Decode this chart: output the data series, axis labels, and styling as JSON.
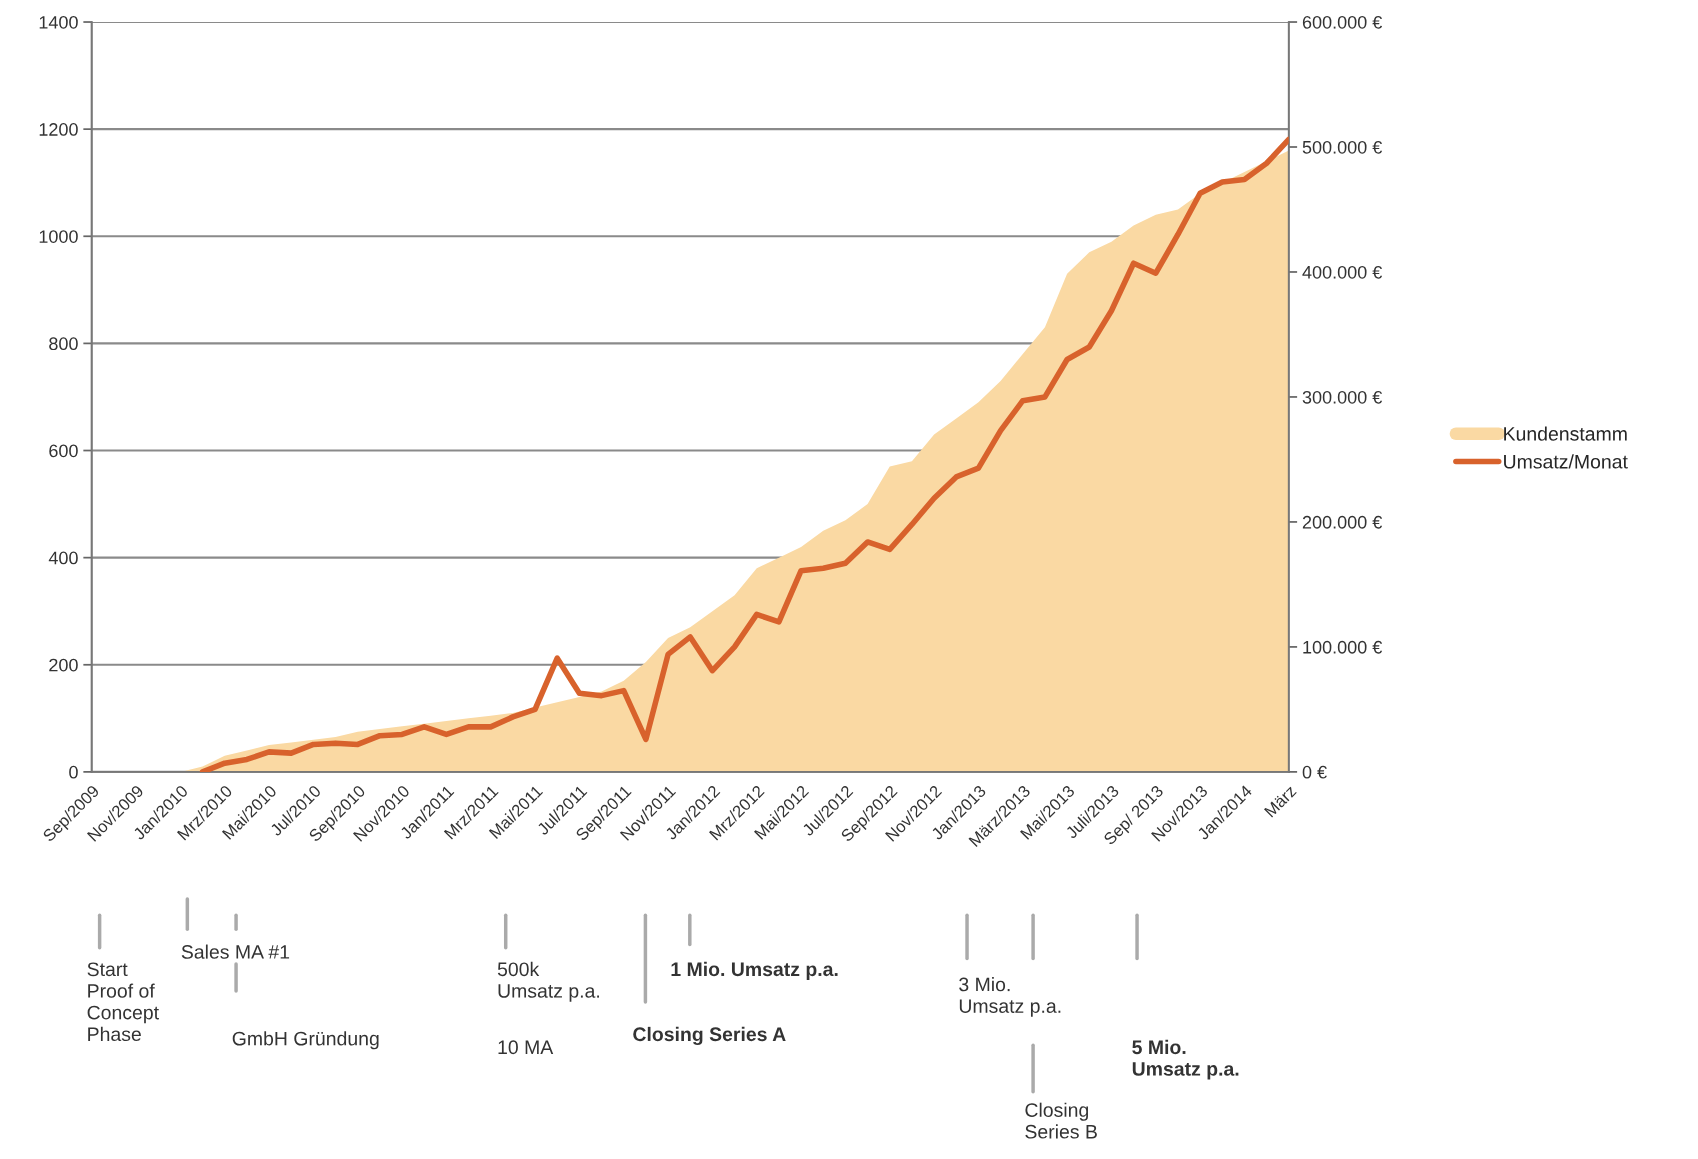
{
  "chart_data": {
    "type": "area",
    "categories": [
      "Sep/2009",
      null,
      "Nov/2009",
      null,
      "Jan/2010",
      null,
      "Mrz/2010",
      null,
      "Mai/2010",
      null,
      "Jul/2010",
      null,
      "Sep/2010",
      null,
      "Nov/2010",
      null,
      "Jan/2011",
      null,
      "Mrz/2011",
      null,
      "Mai/2011",
      null,
      "Jul/2011",
      null,
      "Sep/2011",
      null,
      "Nov/2011",
      null,
      "Jan/2012",
      null,
      "Mrz/2012",
      null,
      "Mai/2012",
      null,
      "Jul/2012",
      null,
      "Sep/2012",
      null,
      "Nov/2012",
      null,
      "Jan/2013",
      null,
      "März/2013",
      null,
      "Mai/2013",
      null,
      "Juli/2013",
      null,
      "Sep/ 2013",
      null,
      "Nov/2013",
      null,
      "Jan/2014",
      null,
      "März"
    ],
    "series": [
      {
        "name": "Kundenstamm",
        "color": "#fad9a3",
        "values": [
          0,
          0,
          0,
          0,
          0,
          10,
          30,
          40,
          50,
          55,
          60,
          65,
          75,
          80,
          85,
          90,
          95,
          100,
          105,
          110,
          120,
          130,
          140,
          150,
          170,
          205,
          250,
          270,
          300,
          330,
          380,
          400,
          420,
          450,
          470,
          500,
          570,
          580,
          630,
          660,
          690,
          730,
          780,
          830,
          930,
          970,
          990,
          1020,
          1040,
          1050,
          1080,
          1100,
          1120,
          1140,
          1160
        ]
      },
      {
        "name": "Umsatz/Monat",
        "type": "line",
        "axis": "y2",
        "color": "#d8622c",
        "values": [
          null,
          null,
          null,
          null,
          null,
          0,
          7000,
          10000,
          16000,
          15000,
          22000,
          23000,
          22000,
          29000,
          30000,
          36000,
          30000,
          36000,
          36000,
          44000,
          50000,
          91000,
          63000,
          61000,
          65000,
          26000,
          94000,
          108000,
          81000,
          100000,
          126000,
          120000,
          161000,
          163000,
          167000,
          184000,
          178000,
          198000,
          219000,
          236000,
          243000,
          273000,
          297000,
          300000,
          330000,
          340000,
          369000,
          407000,
          399000,
          430000,
          463000,
          472000,
          474000,
          487000,
          506000
        ]
      }
    ],
    "ylim": [
      0,
      1400
    ],
    "yticks": [
      0,
      200,
      400,
      600,
      800,
      1000,
      1200,
      1400
    ],
    "y2lim": [
      0,
      600000
    ],
    "y2ticks": [
      {
        "value": 0,
        "label": "0 €"
      },
      {
        "value": 100000,
        "label": "100.000 €"
      },
      {
        "value": 200000,
        "label": "200.000 €"
      },
      {
        "value": 300000,
        "label": "300.000 €"
      },
      {
        "value": 400000,
        "label": "400.000 €"
      },
      {
        "value": 500000,
        "label": "500.000 €"
      },
      {
        "value": 600000,
        "label": "600.000 €"
      }
    ],
    "grid": "y",
    "legend": "right",
    "line_style": "solid",
    "marker": "none",
    "annotations": [
      "Start\nProof of\nConcept\nPhase",
      "Sales MA #1",
      "GmbH Gründung",
      "500k\nUmsatz p.a.",
      "10 MA",
      "Closing Series A",
      "1 Mio. Umsatz p.a.",
      "3 Mio.\nUmsatz p.a.",
      "Closing\nSeries B",
      "5 Mio.\nUmsatz p.a."
    ]
  }
}
